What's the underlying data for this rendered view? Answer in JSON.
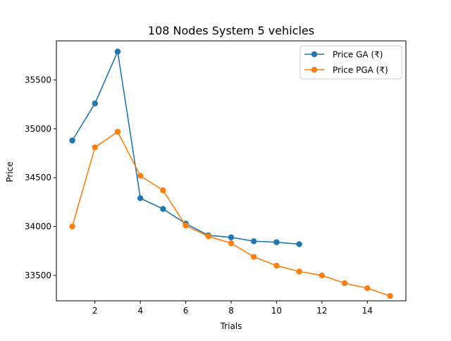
{
  "chart_data": {
    "type": "line",
    "title": "108 Nodes System 5 vehicles",
    "xlabel": "Trials",
    "ylabel": "Price",
    "xlim": [
      0.3,
      15.7
    ],
    "ylim": [
      33240,
      35900
    ],
    "xticks": [
      2,
      4,
      6,
      8,
      10,
      12,
      14
    ],
    "xtick_labels": [
      "2",
      "4",
      "6",
      "8",
      "10",
      "12",
      "14"
    ],
    "yticks": [
      33500,
      34000,
      34500,
      35000,
      35500
    ],
    "ytick_labels": [
      "33500",
      "34000",
      "34500",
      "35000",
      "35500"
    ],
    "grid": false,
    "legend_position": "upper right",
    "series": [
      {
        "name": "Price GA (₹)",
        "color": "#1f77b4",
        "marker": "circle",
        "x": [
          1,
          2,
          3,
          4,
          5,
          6,
          7,
          8,
          9,
          10,
          11
        ],
        "values": [
          34880,
          35260,
          35790,
          34290,
          34180,
          34030,
          33910,
          33890,
          33850,
          33840,
          33820
        ]
      },
      {
        "name": "Price PGA (₹)",
        "color": "#ff7f0e",
        "marker": "circle",
        "x": [
          1,
          2,
          3,
          4,
          5,
          6,
          7,
          8,
          9,
          10,
          11,
          12,
          13,
          14,
          15
        ],
        "values": [
          34000,
          34810,
          34970,
          34520,
          34370,
          34010,
          33900,
          33830,
          33690,
          33600,
          33540,
          33500,
          33420,
          33370,
          33290
        ]
      }
    ]
  }
}
